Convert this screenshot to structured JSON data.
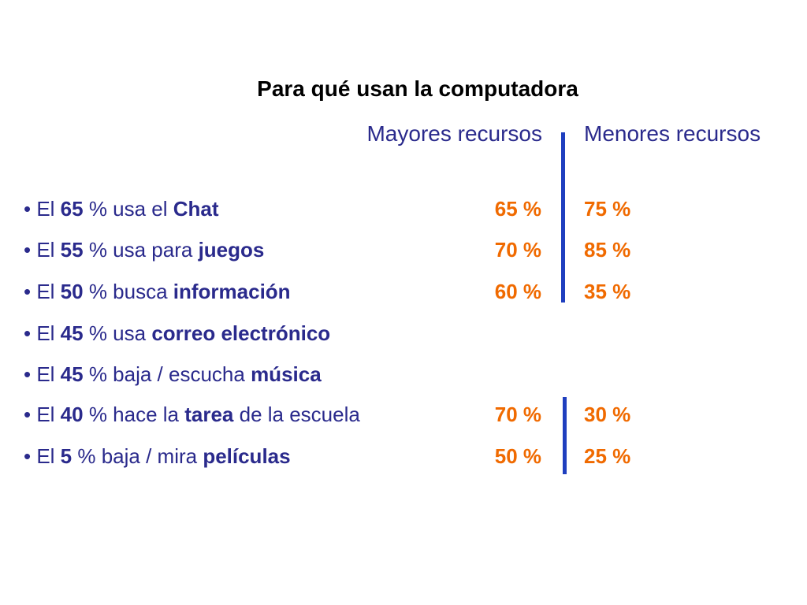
{
  "title": "Para qué usan la computadora",
  "columns": {
    "high": "Mayores recursos",
    "low": "Menores recursos"
  },
  "rows": [
    {
      "prefix": "• El ",
      "pct": "65",
      "mid": " % usa el ",
      "activity": "Chat",
      "suffix": "",
      "high": "65 %",
      "low": "75 %"
    },
    {
      "prefix": "• El ",
      "pct": "55",
      "mid": " % usa para ",
      "activity": "juegos",
      "suffix": "",
      "high": "70 %",
      "low": "85 %"
    },
    {
      "prefix": "• El ",
      "pct": "50",
      "mid": " % busca ",
      "activity": "información",
      "suffix": "",
      "high": "60 %",
      "low": "35 %"
    },
    {
      "prefix": "• El ",
      "pct": "45",
      "mid": " % usa ",
      "activity": "correo electrónico",
      "suffix": "",
      "high": "",
      "low": ""
    },
    {
      "prefix": "• El ",
      "pct": "45",
      "mid": " % baja / escucha ",
      "activity": "música",
      "suffix": "",
      "high": "",
      "low": ""
    },
    {
      "prefix": "• El ",
      "pct": "40",
      "mid": " % hace la ",
      "activity": "tarea",
      "suffix": " de la escuela",
      "high": "70 %",
      "low": "30 %"
    },
    {
      "prefix": "• El ",
      "pct": "5",
      "mid": " % baja / mira ",
      "activity": "películas",
      "suffix": "",
      "high": "50 %",
      "low": "25 %"
    }
  ],
  "colors": {
    "text_blue": "#2a2a8c",
    "value_orange": "#f06a00",
    "divider_blue": "#1f3fbf"
  }
}
